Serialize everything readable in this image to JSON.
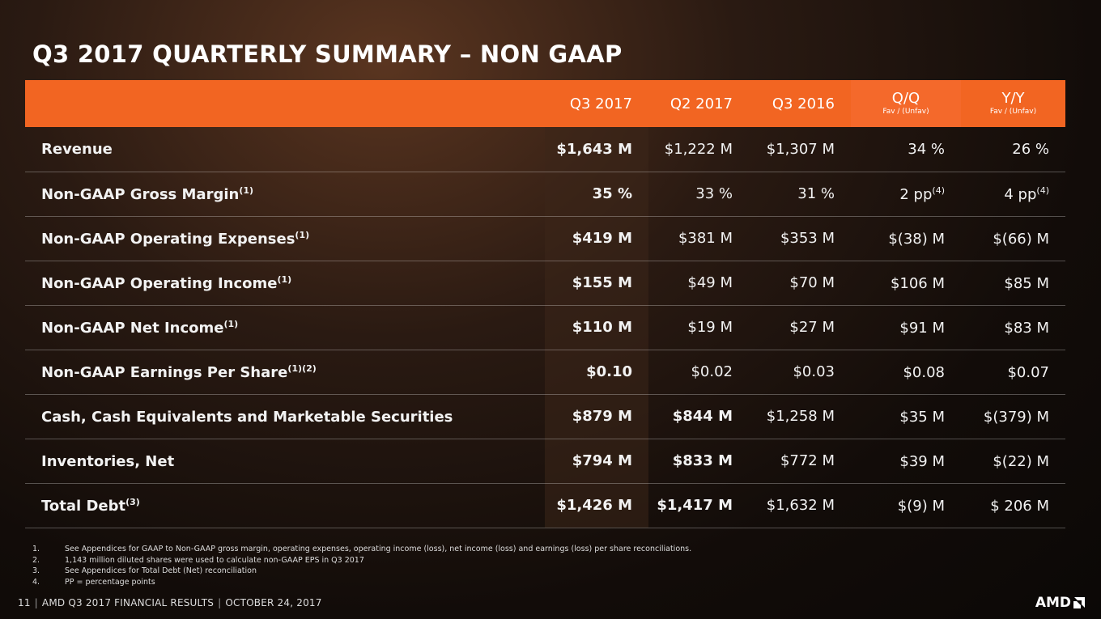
{
  "title": "Q3 2017 QUARTERLY SUMMARY – NON GAAP",
  "columns": {
    "q3_2017": "Q3 2017",
    "q2_2017": "Q2 2017",
    "q3_2016": "Q3 2016",
    "qq": "Q/Q",
    "qq_sub": "Fav / (Unfav)",
    "yy": "Y/Y",
    "yy_sub": "Fav / (Unfav)"
  },
  "rows": [
    {
      "label": "Revenue",
      "note": "",
      "q3_2017": "$1,643 M",
      "q2_2017": "$1,222 M",
      "q3_2016": "$1,307 M",
      "qq": "34 %",
      "qq_note": "",
      "yy": "26 %",
      "yy_note": ""
    },
    {
      "label": "Non-GAAP Gross Margin",
      "note": "(1)",
      "q3_2017": "35 %",
      "q2_2017": "33 %",
      "q3_2016": "31 %",
      "qq": "2 pp",
      "qq_note": "(4)",
      "yy": "4 pp",
      "yy_note": "(4)"
    },
    {
      "label": "Non-GAAP Operating Expenses",
      "note": "(1)",
      "q3_2017": "$419 M",
      "q2_2017": "$381 M",
      "q3_2016": "$353 M",
      "qq": "$(38) M",
      "qq_note": "",
      "yy": "$(66) M",
      "yy_note": ""
    },
    {
      "label": "Non-GAAP Operating Income",
      "note": "(1)",
      "q3_2017": "$155 M",
      "q2_2017": "$49 M",
      "q3_2016": "$70 M",
      "qq": "$106 M",
      "qq_note": "",
      "yy": "$85 M",
      "yy_note": ""
    },
    {
      "label": "Non-GAAP Net Income",
      "note": "(1)",
      "q3_2017": "$110 M",
      "q2_2017": "$19 M",
      "q3_2016": "$27 M",
      "qq": "$91 M",
      "qq_note": "",
      "yy": "$83 M",
      "yy_note": ""
    },
    {
      "label": "Non-GAAP Earnings Per Share",
      "note": "(1)(2)",
      "q3_2017": "$0.10",
      "q2_2017": "$0.02",
      "q3_2016": "$0.03",
      "qq": "$0.08",
      "qq_note": "",
      "yy": "$0.07",
      "yy_note": ""
    },
    {
      "label": "Cash, Cash Equivalents and Marketable Securities",
      "note": "",
      "q3_2017": "$879 M",
      "q2_2017": "$844 M",
      "q3_2016": "$1,258 M",
      "qq": "$35 M",
      "qq_note": "",
      "yy": "$(379) M",
      "yy_note": ""
    },
    {
      "label": "Inventories, Net",
      "note": "",
      "q3_2017": "$794 M",
      "q2_2017": "$833 M",
      "q3_2016": "$772 M",
      "qq": "$39 M",
      "qq_note": "",
      "yy": "$(22) M",
      "yy_note": ""
    },
    {
      "label": "Total Debt",
      "note": "(3)",
      "q3_2017": "$1,426 M",
      "q2_2017": "$1,417 M",
      "q3_2016": "$1,632 M",
      "qq": "$(9) M",
      "qq_note": "",
      "yy": "$ 206 M",
      "yy_note": ""
    }
  ],
  "footnotes": [
    {
      "num": "1.",
      "text": "See Appendices for GAAP to Non-GAAP gross margin, operating expenses, operating income (loss), net income (loss) and earnings (loss) per share reconciliations."
    },
    {
      "num": "2.",
      "text": "1,143 million diluted shares were used to calculate non-GAAP EPS in Q3 2017"
    },
    {
      "num": "3.",
      "text": "See Appendices for Total Debt (Net) reconciliation"
    },
    {
      "num": "4.",
      "text": "PP = percentage points"
    }
  ],
  "footer": {
    "page": "11",
    "event": "AMD Q3 2017 FINANCIAL RESULTS",
    "date": "OCTOBER 24, 2017",
    "logo": "AMD"
  },
  "colors": {
    "accent": "#f26522",
    "background": "#120c09"
  }
}
